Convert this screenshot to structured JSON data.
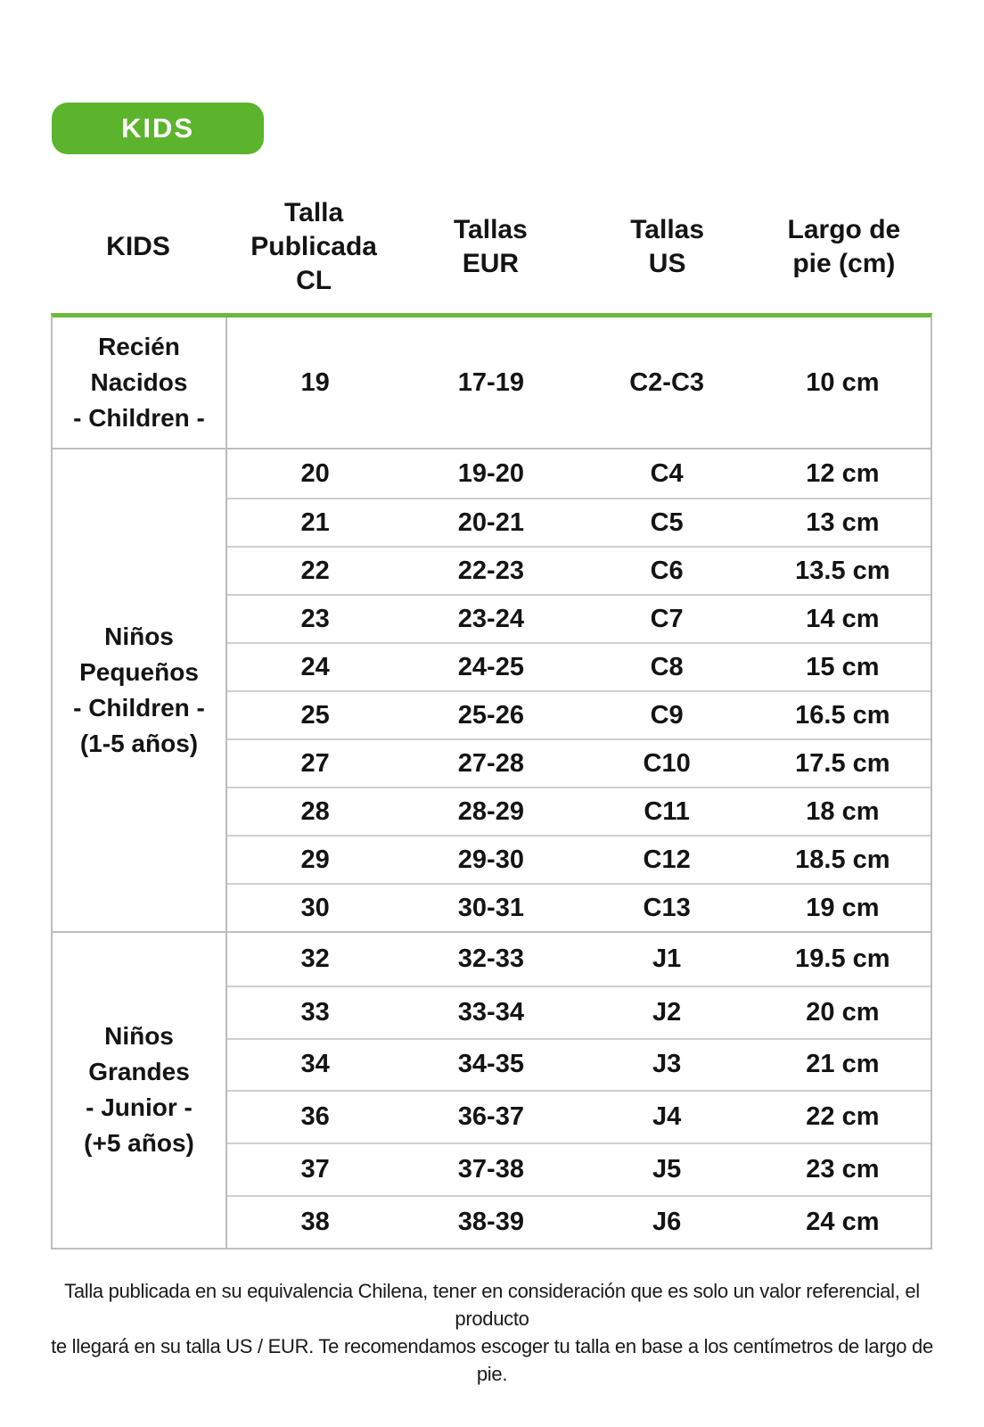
{
  "badge": {
    "label": "KIDS"
  },
  "colors": {
    "badge_green": "#5cb42c",
    "table_top_line_green": "#6cba3c",
    "border_gray": "#bdbdbd",
    "row_border_gray": "#cfcfcf",
    "text_black": "#141414",
    "badge_text": "#ffffff"
  },
  "table": {
    "columns": [
      "KIDS",
      "Talla\nPublicada\nCL",
      "Tallas\nEUR",
      "Tallas\nUS",
      "Largo de\npie (cm)"
    ],
    "groups": [
      {
        "label": "Recién\nNacidos\n- Children -",
        "rows": [
          [
            "19",
            "17-19",
            "C2-C3",
            "10 cm"
          ]
        ]
      },
      {
        "label": "Niños\nPequeños\n- Children -\n(1-5 años)",
        "rows": [
          [
            "20",
            "19-20",
            "C4",
            "12 cm"
          ],
          [
            "21",
            "20-21",
            "C5",
            "13 cm"
          ],
          [
            "22",
            "22-23",
            "C6",
            "13.5 cm"
          ],
          [
            "23",
            "23-24",
            "C7",
            "14 cm"
          ],
          [
            "24",
            "24-25",
            "C8",
            "15 cm"
          ],
          [
            "25",
            "25-26",
            "C9",
            "16.5 cm"
          ],
          [
            "27",
            "27-28",
            "C10",
            "17.5 cm"
          ],
          [
            "28",
            "28-29",
            "C11",
            "18 cm"
          ],
          [
            "29",
            "29-30",
            "C12",
            "18.5 cm"
          ],
          [
            "30",
            "30-31",
            "C13",
            "19 cm"
          ]
        ]
      },
      {
        "label": "Niños\nGrandes\n- Junior -\n(+5 años)",
        "rows": [
          [
            "32",
            "32-33",
            "J1",
            "19.5 cm"
          ],
          [
            "33",
            "33-34",
            "J2",
            "20 cm"
          ],
          [
            "34",
            "34-35",
            "J3",
            "21 cm"
          ],
          [
            "36",
            "36-37",
            "J4",
            "22 cm"
          ],
          [
            "37",
            "37-38",
            "J5",
            "23 cm"
          ],
          [
            "38",
            "38-39",
            "J6",
            "24 cm"
          ]
        ]
      }
    ]
  },
  "footer": {
    "note": "Talla publicada en su equivalencia Chilena, tener en consideración que es solo un valor referencial, el producto\nte llegará en su talla US / EUR. Te recomendamos escoger tu talla en base a los centímetros de largo de pie."
  }
}
